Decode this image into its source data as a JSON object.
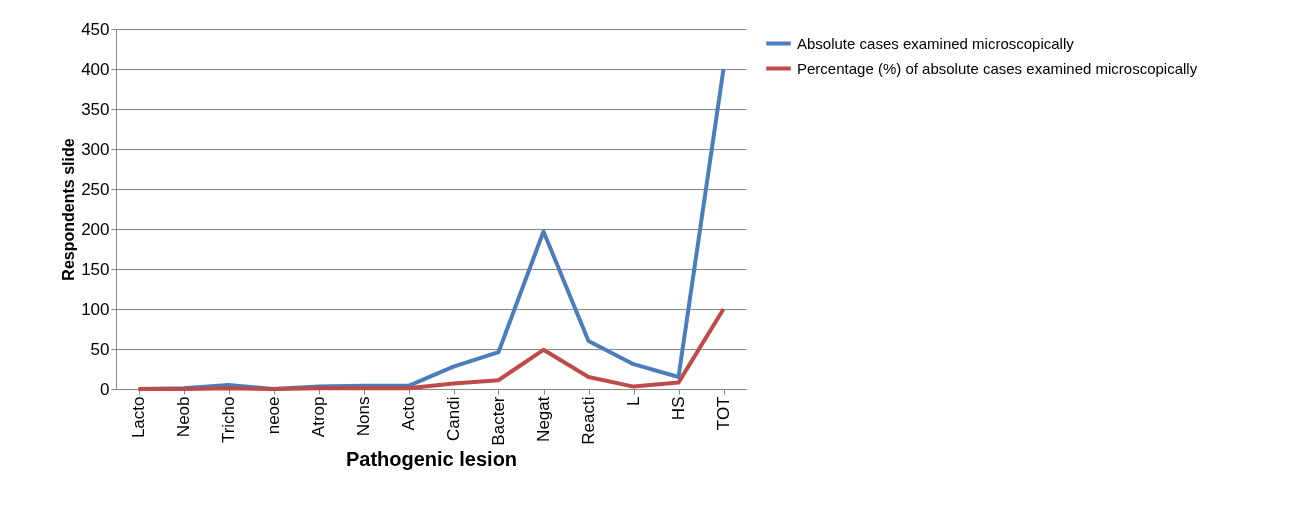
{
  "chart_data": {
    "type": "line",
    "xlabel": "Pathogenic lesion",
    "ylabel": "Respondents slide",
    "categories": [
      "Lacto",
      "Neob",
      "Tricho",
      "neoe",
      "Atrop",
      "Nons",
      "Acto",
      "Candi",
      "Bacter",
      "Negat",
      "Reacti",
      "L",
      "HS",
      "TOT"
    ],
    "series": [
      {
        "name": "Absolute cases examined microscopically",
        "color": "#4a7ebb",
        "values": [
          0,
          1,
          5,
          0,
          3,
          4,
          4,
          28,
          46,
          197,
          60,
          31,
          15,
          400
        ]
      },
      {
        "name": "Percentage (%) of absolute cases examined microscopically",
        "color": "#be4b48",
        "values": [
          0,
          0,
          1,
          0,
          1,
          1,
          1,
          7,
          11,
          49,
          15,
          3,
          8,
          100
        ]
      }
    ],
    "ylim": [
      0,
      450
    ],
    "yticks": [
      0,
      50,
      100,
      150,
      200,
      250,
      300,
      350,
      400,
      450
    ],
    "grid": "y",
    "legend": "right",
    "marker": "none",
    "line_style": "solid"
  }
}
